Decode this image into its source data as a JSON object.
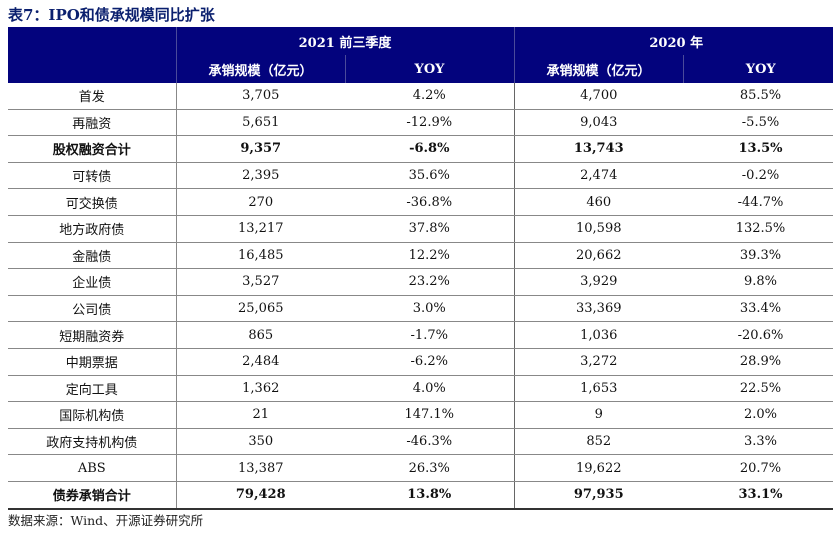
{
  "title": "表7：IPO和债承规模同比扩张",
  "header": {
    "period_2021": "2021 前三季度",
    "period_2020": "2020 年",
    "col_amount": "承销规模（亿元）",
    "col_yoy": "YOY"
  },
  "rows": [
    {
      "label": "首发",
      "a21": "3,705",
      "y21": "4.2%",
      "a20": "4,700",
      "y20": "85.5%",
      "bold": false
    },
    {
      "label": "再融资",
      "a21": "5,651",
      "y21": "-12.9%",
      "a20": "9,043",
      "y20": "-5.5%",
      "bold": false
    },
    {
      "label": "股权融资合计",
      "a21": "9,357",
      "y21": "-6.8%",
      "a20": "13,743",
      "y20": "13.5%",
      "bold": true
    },
    {
      "label": "可转债",
      "a21": "2,395",
      "y21": "35.6%",
      "a20": "2,474",
      "y20": "-0.2%",
      "bold": false
    },
    {
      "label": "可交换债",
      "a21": "270",
      "y21": "-36.8%",
      "a20": "460",
      "y20": "-44.7%",
      "bold": false
    },
    {
      "label": "地方政府债",
      "a21": "13,217",
      "y21": "37.8%",
      "a20": "10,598",
      "y20": "132.5%",
      "bold": false
    },
    {
      "label": "金融债",
      "a21": "16,485",
      "y21": "12.2%",
      "a20": "20,662",
      "y20": "39.3%",
      "bold": false
    },
    {
      "label": "企业债",
      "a21": "3,527",
      "y21": "23.2%",
      "a20": "3,929",
      "y20": "9.8%",
      "bold": false
    },
    {
      "label": "公司债",
      "a21": "25,065",
      "y21": "3.0%",
      "a20": "33,369",
      "y20": "33.4%",
      "bold": false
    },
    {
      "label": "短期融资券",
      "a21": "865",
      "y21": "-1.7%",
      "a20": "1,036",
      "y20": "-20.6%",
      "bold": false
    },
    {
      "label": "中期票据",
      "a21": "2,484",
      "y21": "-6.2%",
      "a20": "3,272",
      "y20": "28.9%",
      "bold": false
    },
    {
      "label": "定向工具",
      "a21": "1,362",
      "y21": "4.0%",
      "a20": "1,653",
      "y20": "22.5%",
      "bold": false
    },
    {
      "label": "国际机构债",
      "a21": "21",
      "y21": "147.1%",
      "a20": "9",
      "y20": "2.0%",
      "bold": false
    },
    {
      "label": "政府支持机构债",
      "a21": "350",
      "y21": "-46.3%",
      "a20": "852",
      "y20": "3.3%",
      "bold": false
    },
    {
      "label": "ABS",
      "a21": "13,387",
      "y21": "26.3%",
      "a20": "19,622",
      "y20": "20.7%",
      "bold": false
    },
    {
      "label": "债券承销合计",
      "a21": "79,428",
      "y21": "13.8%",
      "a20": "97,935",
      "y20": "33.1%",
      "bold": true
    }
  ],
  "source": "数据来源：Wind、开源证券研究所"
}
